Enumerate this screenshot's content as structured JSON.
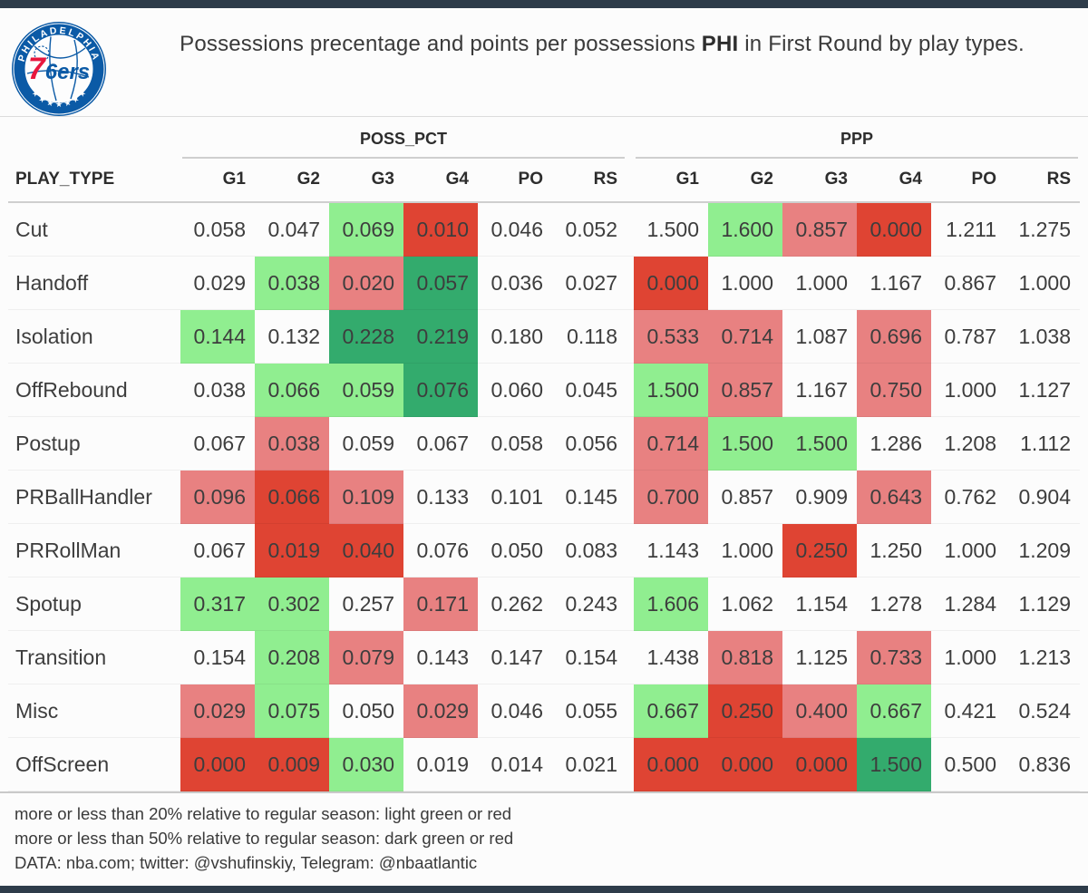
{
  "header": {
    "title_prefix": "Possessions precentage and points per possessions ",
    "title_team": "PHI",
    "title_suffix": " in First Round by play types.",
    "logo": {
      "team_name": "Philadelphia 76ers",
      "ring_text": "PHILADELPHIA",
      "stars": "★ ★ ★ ★ ★ ★ ★",
      "center_7": "7",
      "center_6ers": "6ers",
      "blue": "#0b5aa6",
      "red": "#e8173e"
    }
  },
  "chart_data": {
    "type": "table",
    "title": "Possessions precentage and points per possessions PHI in First Round by play types.",
    "row_label_header": "PLAY_TYPE",
    "column_groups": [
      "POSS_PCT",
      "PPP"
    ],
    "columns": [
      "G1",
      "G2",
      "G3",
      "G4",
      "PO",
      "RS"
    ],
    "cell_colors": {
      "w": "transparent",
      "lg": "#90ee90",
      "dg": "#33ab6d",
      "lr": "#e88181",
      "dr": "#df4433"
    },
    "color_meanings": {
      "lg": "more than 20% above regular season",
      "lr": "more than 20% below regular season",
      "dg": "more than 50% above regular season",
      "dr": "more than 50% below regular season"
    },
    "rows": [
      {
        "play_type": "Cut",
        "poss_pct": [
          [
            "0.058",
            "w"
          ],
          [
            "0.047",
            "w"
          ],
          [
            "0.069",
            "lg"
          ],
          [
            "0.010",
            "dr"
          ],
          [
            "0.046",
            "w"
          ],
          [
            "0.052",
            "w"
          ]
        ],
        "ppp": [
          [
            "1.500",
            "w"
          ],
          [
            "1.600",
            "lg"
          ],
          [
            "0.857",
            "lr"
          ],
          [
            "0.000",
            "dr"
          ],
          [
            "1.211",
            "w"
          ],
          [
            "1.275",
            "w"
          ]
        ]
      },
      {
        "play_type": "Handoff",
        "poss_pct": [
          [
            "0.029",
            "w"
          ],
          [
            "0.038",
            "lg"
          ],
          [
            "0.020",
            "lr"
          ],
          [
            "0.057",
            "dg"
          ],
          [
            "0.036",
            "w"
          ],
          [
            "0.027",
            "w"
          ]
        ],
        "ppp": [
          [
            "0.000",
            "dr"
          ],
          [
            "1.000",
            "w"
          ],
          [
            "1.000",
            "w"
          ],
          [
            "1.167",
            "w"
          ],
          [
            "0.867",
            "w"
          ],
          [
            "1.000",
            "w"
          ]
        ]
      },
      {
        "play_type": "Isolation",
        "poss_pct": [
          [
            "0.144",
            "lg"
          ],
          [
            "0.132",
            "w"
          ],
          [
            "0.228",
            "dg"
          ],
          [
            "0.219",
            "dg"
          ],
          [
            "0.180",
            "w"
          ],
          [
            "0.118",
            "w"
          ]
        ],
        "ppp": [
          [
            "0.533",
            "lr"
          ],
          [
            "0.714",
            "lr"
          ],
          [
            "1.087",
            "w"
          ],
          [
            "0.696",
            "lr"
          ],
          [
            "0.787",
            "w"
          ],
          [
            "1.038",
            "w"
          ]
        ]
      },
      {
        "play_type": "OffRebound",
        "poss_pct": [
          [
            "0.038",
            "w"
          ],
          [
            "0.066",
            "lg"
          ],
          [
            "0.059",
            "lg"
          ],
          [
            "0.076",
            "dg"
          ],
          [
            "0.060",
            "w"
          ],
          [
            "0.045",
            "w"
          ]
        ],
        "ppp": [
          [
            "1.500",
            "lg"
          ],
          [
            "0.857",
            "lr"
          ],
          [
            "1.167",
            "w"
          ],
          [
            "0.750",
            "lr"
          ],
          [
            "1.000",
            "w"
          ],
          [
            "1.127",
            "w"
          ]
        ]
      },
      {
        "play_type": "Postup",
        "poss_pct": [
          [
            "0.067",
            "w"
          ],
          [
            "0.038",
            "lr"
          ],
          [
            "0.059",
            "w"
          ],
          [
            "0.067",
            "w"
          ],
          [
            "0.058",
            "w"
          ],
          [
            "0.056",
            "w"
          ]
        ],
        "ppp": [
          [
            "0.714",
            "lr"
          ],
          [
            "1.500",
            "lg"
          ],
          [
            "1.500",
            "lg"
          ],
          [
            "1.286",
            "w"
          ],
          [
            "1.208",
            "w"
          ],
          [
            "1.112",
            "w"
          ]
        ]
      },
      {
        "play_type": "PRBallHandler",
        "poss_pct": [
          [
            "0.096",
            "lr"
          ],
          [
            "0.066",
            "dr"
          ],
          [
            "0.109",
            "lr"
          ],
          [
            "0.133",
            "w"
          ],
          [
            "0.101",
            "w"
          ],
          [
            "0.145",
            "w"
          ]
        ],
        "ppp": [
          [
            "0.700",
            "lr"
          ],
          [
            "0.857",
            "w"
          ],
          [
            "0.909",
            "w"
          ],
          [
            "0.643",
            "lr"
          ],
          [
            "0.762",
            "w"
          ],
          [
            "0.904",
            "w"
          ]
        ]
      },
      {
        "play_type": "PRRollMan",
        "poss_pct": [
          [
            "0.067",
            "w"
          ],
          [
            "0.019",
            "dr"
          ],
          [
            "0.040",
            "dr"
          ],
          [
            "0.076",
            "w"
          ],
          [
            "0.050",
            "w"
          ],
          [
            "0.083",
            "w"
          ]
        ],
        "ppp": [
          [
            "1.143",
            "w"
          ],
          [
            "1.000",
            "w"
          ],
          [
            "0.250",
            "dr"
          ],
          [
            "1.250",
            "w"
          ],
          [
            "1.000",
            "w"
          ],
          [
            "1.209",
            "w"
          ]
        ]
      },
      {
        "play_type": "Spotup",
        "poss_pct": [
          [
            "0.317",
            "lg"
          ],
          [
            "0.302",
            "lg"
          ],
          [
            "0.257",
            "w"
          ],
          [
            "0.171",
            "lr"
          ],
          [
            "0.262",
            "w"
          ],
          [
            "0.243",
            "w"
          ]
        ],
        "ppp": [
          [
            "1.606",
            "lg"
          ],
          [
            "1.062",
            "w"
          ],
          [
            "1.154",
            "w"
          ],
          [
            "1.278",
            "w"
          ],
          [
            "1.284",
            "w"
          ],
          [
            "1.129",
            "w"
          ]
        ]
      },
      {
        "play_type": "Transition",
        "poss_pct": [
          [
            "0.154",
            "w"
          ],
          [
            "0.208",
            "lg"
          ],
          [
            "0.079",
            "lr"
          ],
          [
            "0.143",
            "w"
          ],
          [
            "0.147",
            "w"
          ],
          [
            "0.154",
            "w"
          ]
        ],
        "ppp": [
          [
            "1.438",
            "w"
          ],
          [
            "0.818",
            "lr"
          ],
          [
            "1.125",
            "w"
          ],
          [
            "0.733",
            "lr"
          ],
          [
            "1.000",
            "w"
          ],
          [
            "1.213",
            "w"
          ]
        ]
      },
      {
        "play_type": "Misc",
        "poss_pct": [
          [
            "0.029",
            "lr"
          ],
          [
            "0.075",
            "lg"
          ],
          [
            "0.050",
            "w"
          ],
          [
            "0.029",
            "lr"
          ],
          [
            "0.046",
            "w"
          ],
          [
            "0.055",
            "w"
          ]
        ],
        "ppp": [
          [
            "0.667",
            "lg"
          ],
          [
            "0.250",
            "dr"
          ],
          [
            "0.400",
            "lr"
          ],
          [
            "0.667",
            "lg"
          ],
          [
            "0.421",
            "w"
          ],
          [
            "0.524",
            "w"
          ]
        ]
      },
      {
        "play_type": "OffScreen",
        "poss_pct": [
          [
            "0.000",
            "dr"
          ],
          [
            "0.009",
            "dr"
          ],
          [
            "0.030",
            "lg"
          ],
          [
            "0.019",
            "w"
          ],
          [
            "0.014",
            "w"
          ],
          [
            "0.021",
            "w"
          ]
        ],
        "ppp": [
          [
            "0.000",
            "dr"
          ],
          [
            "0.000",
            "dr"
          ],
          [
            "0.000",
            "dr"
          ],
          [
            "1.500",
            "dg"
          ],
          [
            "0.500",
            "w"
          ],
          [
            "0.836",
            "w"
          ]
        ]
      }
    ]
  },
  "footer": {
    "line1": "more or less than 20% relative to regular season: light green or red",
    "line2": "more or less than 50% relative to regular season: dark green or red",
    "line3": "DATA: nba.com; twitter: @vshufinskiy, Telegram: @nbaatlantic"
  },
  "colors": {
    "bar_navy": "#2e3c4a",
    "light_green": "#90ee90",
    "dark_green": "#33ab6d",
    "light_red": "#e88181",
    "dark_red": "#df4433"
  }
}
